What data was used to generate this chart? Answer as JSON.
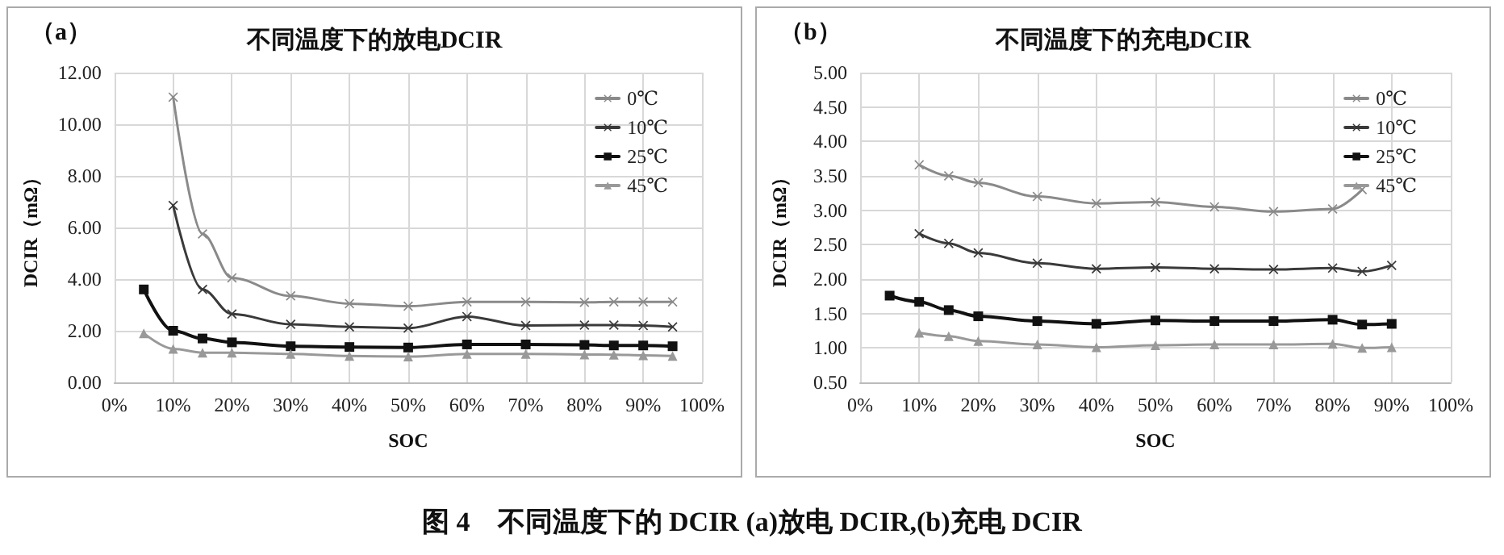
{
  "chart_data": [
    {
      "type": "line",
      "title": "不同温度下的放电DCIR",
      "xlabel": "SOC",
      "ylabel": "DCIR（mΩ）",
      "annotations": [
        "（a）",
        "图 4　不同温度下的 DCIR (a)放电 DCIR,(b)充电 DCIR"
      ],
      "xlim": [
        0,
        100
      ],
      "xticks": [
        {
          "value": 0,
          "label": "0%"
        },
        {
          "value": 10,
          "label": "10%"
        },
        {
          "value": 20,
          "label": "20%"
        },
        {
          "value": 30,
          "label": "30%"
        },
        {
          "value": 40,
          "label": "40%"
        },
        {
          "value": 50,
          "label": "50%"
        },
        {
          "value": 60,
          "label": "60%"
        },
        {
          "value": 70,
          "label": "70%"
        },
        {
          "value": 80,
          "label": "80%"
        },
        {
          "value": 90,
          "label": "90%"
        },
        {
          "value": 100,
          "label": "100%"
        }
      ],
      "ylim": [
        0,
        12
      ],
      "yticks": [
        {
          "value": 0,
          "label": "0.00"
        },
        {
          "value": 2,
          "label": "2.00"
        },
        {
          "value": 4,
          "label": "4.00"
        },
        {
          "value": 6,
          "label": "6.00"
        },
        {
          "value": 8,
          "label": "8.00"
        },
        {
          "value": 10,
          "label": "10.00"
        },
        {
          "value": 12,
          "label": "12.00"
        }
      ],
      "grid": true,
      "legend": "top right",
      "line_style": "solid",
      "series": [
        {
          "name": "0℃",
          "color": "#8a8a8a",
          "marker": "cross",
          "x": [
            10,
            15,
            20,
            30,
            40,
            50,
            60,
            70,
            80,
            85,
            90,
            95
          ],
          "values": [
            11.05,
            5.75,
            4.05,
            3.35,
            3.05,
            2.95,
            3.12,
            3.12,
            3.1,
            3.12,
            3.12,
            3.12
          ]
        },
        {
          "name": "10℃",
          "color": "#3a3a3a",
          "marker": "cross",
          "x": [
            10,
            15,
            20,
            30,
            40,
            50,
            60,
            70,
            80,
            85,
            90,
            95
          ],
          "values": [
            6.85,
            3.6,
            2.65,
            2.25,
            2.15,
            2.1,
            2.55,
            2.2,
            2.22,
            2.22,
            2.2,
            2.15
          ]
        },
        {
          "name": "25℃",
          "color": "#111111",
          "marker": "square",
          "x": [
            5,
            10,
            15,
            20,
            30,
            40,
            50,
            60,
            70,
            80,
            85,
            90,
            95
          ],
          "values": [
            3.6,
            2.0,
            1.7,
            1.55,
            1.4,
            1.37,
            1.35,
            1.47,
            1.47,
            1.45,
            1.43,
            1.43,
            1.4
          ]
        },
        {
          "name": "45℃",
          "color": "#999999",
          "marker": "triangle",
          "x": [
            5,
            10,
            15,
            20,
            30,
            40,
            50,
            60,
            70,
            80,
            85,
            90,
            95
          ],
          "values": [
            1.9,
            1.3,
            1.15,
            1.15,
            1.1,
            1.02,
            1.0,
            1.1,
            1.1,
            1.08,
            1.07,
            1.05,
            1.02
          ]
        }
      ]
    },
    {
      "type": "line",
      "title": "不同温度下的充电DCIR",
      "xlabel": "SOC",
      "ylabel": "DCIR（mΩ）",
      "annotations": [
        "（b）"
      ],
      "xlim": [
        0,
        100
      ],
      "xticks": [
        {
          "value": 0,
          "label": "0%"
        },
        {
          "value": 10,
          "label": "10%"
        },
        {
          "value": 20,
          "label": "20%"
        },
        {
          "value": 30,
          "label": "30%"
        },
        {
          "value": 40,
          "label": "40%"
        },
        {
          "value": 50,
          "label": "50%"
        },
        {
          "value": 60,
          "label": "60%"
        },
        {
          "value": 70,
          "label": "70%"
        },
        {
          "value": 80,
          "label": "80%"
        },
        {
          "value": 90,
          "label": "90%"
        },
        {
          "value": 100,
          "label": "100%"
        }
      ],
      "ylim": [
        0.5,
        5
      ],
      "yticks": [
        {
          "value": 0.5,
          "label": "0.50"
        },
        {
          "value": 1,
          "label": "1.00"
        },
        {
          "value": 1.5,
          "label": "1.50"
        },
        {
          "value": 2,
          "label": "2.00"
        },
        {
          "value": 2.5,
          "label": "2.50"
        },
        {
          "value": 3,
          "label": "3.00"
        },
        {
          "value": 3.5,
          "label": "3.50"
        },
        {
          "value": 4,
          "label": "4.00"
        },
        {
          "value": 4.5,
          "label": "4.50"
        },
        {
          "value": 5,
          "label": "5.00"
        }
      ],
      "grid": true,
      "legend": "top right",
      "line_style": "solid",
      "series": [
        {
          "name": "0℃",
          "color": "#8a8a8a",
          "marker": "cross",
          "x": [
            10,
            15,
            20,
            30,
            40,
            50,
            60,
            70,
            80,
            85
          ],
          "values": [
            3.66,
            3.5,
            3.4,
            3.2,
            3.1,
            3.12,
            3.05,
            2.98,
            3.02,
            3.3
          ]
        },
        {
          "name": "10℃",
          "color": "#3a3a3a",
          "marker": "cross",
          "x": [
            10,
            15,
            20,
            30,
            40,
            50,
            60,
            70,
            80,
            85,
            90
          ],
          "values": [
            2.66,
            2.52,
            2.38,
            2.23,
            2.15,
            2.17,
            2.15,
            2.14,
            2.16,
            2.11,
            2.2
          ]
        },
        {
          "name": "25℃",
          "color": "#111111",
          "marker": "square",
          "x": [
            5,
            10,
            15,
            20,
            30,
            40,
            50,
            60,
            70,
            80,
            85,
            90
          ],
          "values": [
            1.76,
            1.67,
            1.55,
            1.46,
            1.39,
            1.35,
            1.4,
            1.39,
            1.39,
            1.41,
            1.34,
            1.35
          ]
        },
        {
          "name": "45℃",
          "color": "#999999",
          "marker": "triangle",
          "x": [
            10,
            15,
            20,
            30,
            40,
            50,
            60,
            70,
            80,
            85,
            90
          ],
          "values": [
            1.22,
            1.17,
            1.1,
            1.05,
            1.01,
            1.04,
            1.05,
            1.05,
            1.06,
            1.0,
            1.01
          ]
        }
      ]
    }
  ]
}
